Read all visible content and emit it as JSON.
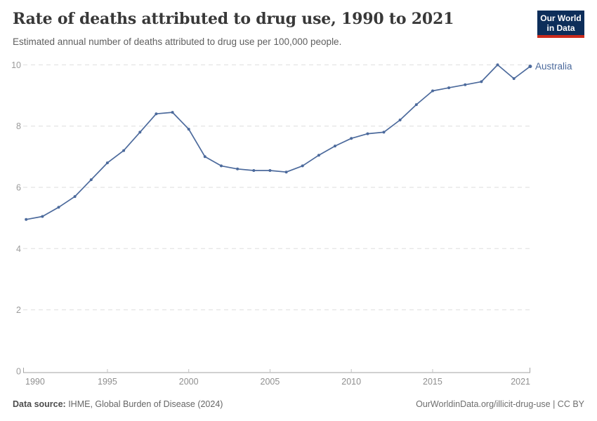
{
  "header": {
    "title": "Rate of deaths attributed to drug use, 1990 to 2021",
    "subtitle": "Estimated annual number of deaths attributed to drug use per 100,000 people.",
    "logo": {
      "line1": "Our World",
      "line2": "in Data"
    }
  },
  "chart_data": {
    "type": "line",
    "title": "Rate of deaths attributed to drug use, 1990 to 2021",
    "subtitle": "Estimated annual number of deaths attributed to drug use per 100,000 people.",
    "x": [
      1990,
      1991,
      1992,
      1993,
      1994,
      1995,
      1996,
      1997,
      1998,
      1999,
      2000,
      2001,
      2002,
      2003,
      2004,
      2005,
      2006,
      2007,
      2008,
      2009,
      2010,
      2011,
      2012,
      2013,
      2014,
      2015,
      2016,
      2017,
      2018,
      2019,
      2020,
      2021
    ],
    "series": [
      {
        "name": "Australia",
        "color": "#4c6a9c",
        "values": [
          4.95,
          5.05,
          5.35,
          5.7,
          6.25,
          6.8,
          7.2,
          7.8,
          8.4,
          8.45,
          7.9,
          7.0,
          6.7,
          6.6,
          6.55,
          6.55,
          6.5,
          6.7,
          7.05,
          7.35,
          7.6,
          7.75,
          7.8,
          8.2,
          8.7,
          9.15,
          9.25,
          9.35,
          9.45,
          10.0,
          9.55,
          9.95
        ]
      }
    ],
    "xticks": [
      1990,
      1995,
      2000,
      2005,
      2010,
      2015,
      2021
    ],
    "yticks": [
      0,
      2,
      4,
      6,
      8,
      10
    ],
    "xlim": [
      1990,
      2021
    ],
    "ylim": [
      0,
      10
    ],
    "grid": true,
    "legend_position": "end-of-line-label"
  },
  "footer": {
    "source_label": "Data source:",
    "source_text": " IHME, Global Burden of Disease (2024)",
    "license_text": "OurWorldinData.org/illicit-drug-use | CC BY"
  },
  "colors": {
    "accent": "#4c6a9c",
    "logo_background": "#0d2e5a",
    "logo_red": "#cc2b1c",
    "gridline": "#dedede",
    "axis": "#a3a3a3",
    "tick_label": "#9b9b9b"
  }
}
